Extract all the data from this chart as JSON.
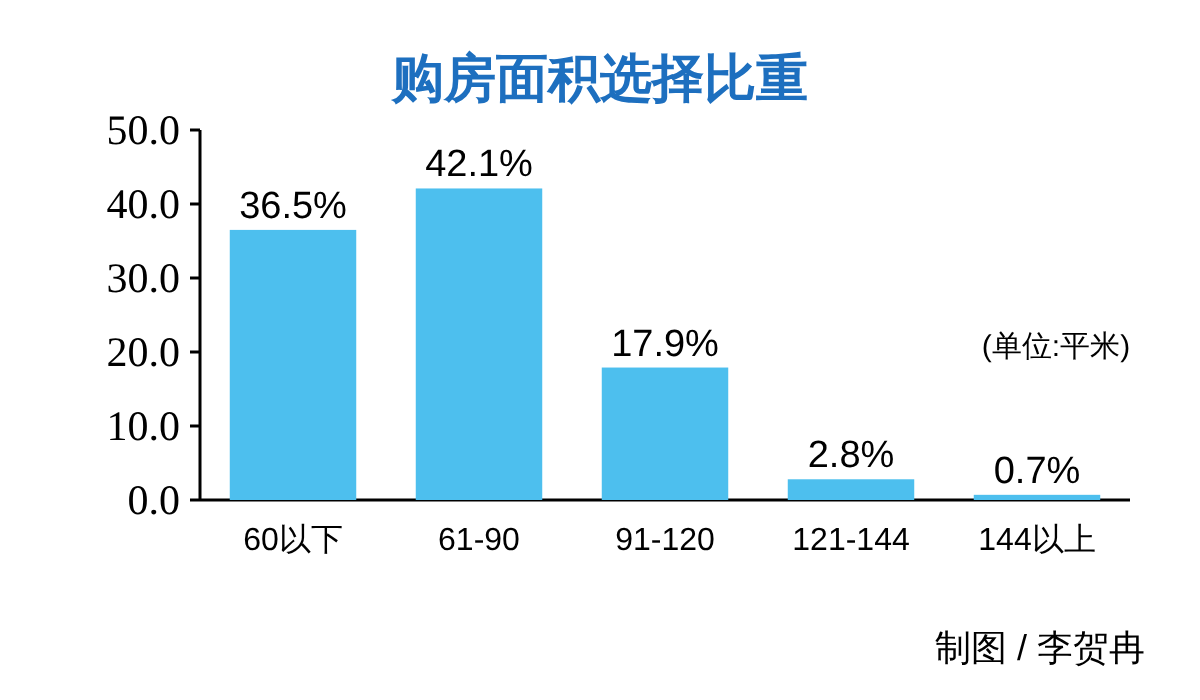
{
  "chart_data": {
    "type": "bar",
    "title": "购房面积选择比重",
    "categories": [
      "60以下",
      "61-90",
      "91-120",
      "121-144",
      "144以上"
    ],
    "values": [
      36.5,
      42.1,
      17.9,
      2.8,
      0.7
    ],
    "value_labels": [
      "36.5%",
      "42.1%",
      "17.9%",
      "2.8%",
      "0.7%"
    ],
    "color": "#4dbfee",
    "ylim": [
      0,
      50
    ],
    "yticks": [
      {
        "value": 0,
        "label": "0.0"
      },
      {
        "value": 10,
        "label": "10.0"
      },
      {
        "value": 20,
        "label": "20.0"
      },
      {
        "value": 30,
        "label": "30.0"
      },
      {
        "value": 40,
        "label": "40.0"
      },
      {
        "value": 50,
        "label": "50.0"
      }
    ],
    "grid": false,
    "annotations": [
      "(单位:平米)",
      "制图 / 李贺冉"
    ]
  }
}
